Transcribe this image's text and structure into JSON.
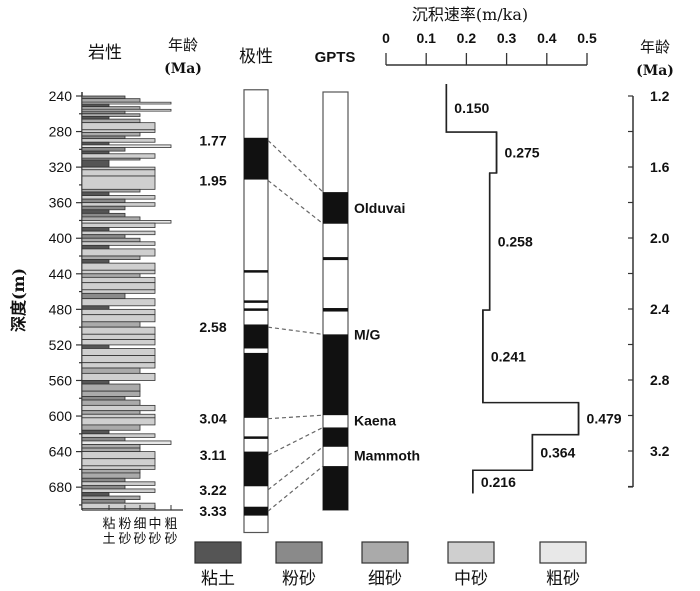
{
  "headers": {
    "lithology": "岩性",
    "age_left": "年龄",
    "age_left_unit": "(Ma)",
    "polarity": "极性",
    "gpts": "GPTS",
    "rate_title": "沉积速率(m/ka)",
    "age_right": "年龄",
    "age_right_unit": "(Ma)",
    "depth_label": "深度(m)"
  },
  "depth_axis": {
    "min": 240,
    "max": 704,
    "ticks": [
      240,
      280,
      320,
      360,
      400,
      440,
      480,
      520,
      560,
      600,
      640,
      680
    ],
    "minor_step": 20
  },
  "grain_axis": [
    {
      "top": "粘",
      "bottom": "土"
    },
    {
      "top": "粉",
      "bottom": "砂"
    },
    {
      "top": "细",
      "bottom": "砂"
    },
    {
      "top": "中",
      "bottom": "砂"
    },
    {
      "top": "粗",
      "bottom": "砂"
    }
  ],
  "lithology_types": [
    {
      "name": "粘土",
      "color": "#555555"
    },
    {
      "name": "粉砂",
      "color": "#8a8a8a"
    },
    {
      "name": "细砂",
      "color": "#aaaaaa"
    },
    {
      "name": "中砂",
      "color": "#cfcfcf"
    },
    {
      "name": "粗砂",
      "color": "#e8e8e8"
    }
  ],
  "lithology_beds": [
    [
      240,
      243,
      1
    ],
    [
      243,
      247,
      2
    ],
    [
      247,
      249,
      4
    ],
    [
      249,
      252,
      0
    ],
    [
      252,
      255,
      2
    ],
    [
      255,
      257,
      4
    ],
    [
      257,
      260,
      1
    ],
    [
      260,
      263,
      2
    ],
    [
      263,
      266,
      0
    ],
    [
      266,
      270,
      2
    ],
    [
      270,
      278,
      3
    ],
    [
      278,
      281,
      3
    ],
    [
      281,
      285,
      2
    ],
    [
      285,
      288,
      1
    ],
    [
      288,
      292,
      3
    ],
    [
      292,
      295,
      0
    ],
    [
      295,
      298,
      4
    ],
    [
      298,
      302,
      1
    ],
    [
      302,
      305,
      0
    ],
    [
      305,
      310,
      3
    ],
    [
      310,
      312,
      2
    ],
    [
      312,
      320,
      0
    ],
    [
      320,
      323,
      3
    ],
    [
      323,
      330,
      3
    ],
    [
      330,
      345,
      3
    ],
    [
      345,
      348,
      2
    ],
    [
      348,
      352,
      0
    ],
    [
      352,
      356,
      3
    ],
    [
      356,
      360,
      1
    ],
    [
      360,
      364,
      3
    ],
    [
      364,
      368,
      1
    ],
    [
      368,
      372,
      0
    ],
    [
      372,
      376,
      1
    ],
    [
      376,
      380,
      2
    ],
    [
      380,
      383,
      4
    ],
    [
      383,
      388,
      3
    ],
    [
      388,
      392,
      0
    ],
    [
      392,
      396,
      3
    ],
    [
      396,
      400,
      1
    ],
    [
      400,
      404,
      2
    ],
    [
      404,
      408,
      3
    ],
    [
      408,
      412,
      0
    ],
    [
      412,
      420,
      3
    ],
    [
      420,
      424,
      2
    ],
    [
      424,
      428,
      0
    ],
    [
      428,
      436,
      3
    ],
    [
      436,
      440,
      3
    ],
    [
      440,
      444,
      2
    ],
    [
      444,
      450,
      3
    ],
    [
      450,
      458,
      3
    ],
    [
      458,
      462,
      3
    ],
    [
      462,
      468,
      1
    ],
    [
      468,
      476,
      3
    ],
    [
      476,
      480,
      0
    ],
    [
      480,
      486,
      3
    ],
    [
      486,
      494,
      3
    ],
    [
      494,
      500,
      2
    ],
    [
      500,
      508,
      3
    ],
    [
      508,
      514,
      3
    ],
    [
      514,
      520,
      3
    ],
    [
      520,
      524,
      0
    ],
    [
      524,
      532,
      3
    ],
    [
      532,
      540,
      3
    ],
    [
      540,
      546,
      3
    ],
    [
      546,
      552,
      2
    ],
    [
      552,
      560,
      3
    ],
    [
      560,
      564,
      0
    ],
    [
      564,
      572,
      2
    ],
    [
      572,
      578,
      2
    ],
    [
      578,
      582,
      1
    ],
    [
      582,
      588,
      2
    ],
    [
      588,
      594,
      3
    ],
    [
      594,
      598,
      2
    ],
    [
      598,
      602,
      3
    ],
    [
      602,
      610,
      3
    ],
    [
      610,
      616,
      2
    ],
    [
      616,
      620,
      0
    ],
    [
      620,
      624,
      3
    ],
    [
      624,
      628,
      1
    ],
    [
      628,
      632,
      4
    ],
    [
      632,
      636,
      2
    ],
    [
      636,
      640,
      2
    ],
    [
      640,
      648,
      3
    ],
    [
      648,
      656,
      3
    ],
    [
      656,
      660,
      3
    ],
    [
      660,
      664,
      2
    ],
    [
      664,
      670,
      2
    ],
    [
      670,
      674,
      1
    ],
    [
      674,
      678,
      3
    ],
    [
      678,
      682,
      1
    ],
    [
      682,
      686,
      3
    ],
    [
      686,
      690,
      0
    ],
    [
      690,
      694,
      2
    ],
    [
      694,
      698,
      1
    ],
    [
      698,
      704,
      3
    ]
  ],
  "age_markers": [
    {
      "label": "1.77",
      "depth": 290
    },
    {
      "label": "1.95",
      "depth": 335
    },
    {
      "label": "2.58",
      "depth": 500
    },
    {
      "label": "3.04",
      "depth": 603
    },
    {
      "label": "3.11",
      "depth": 644
    },
    {
      "label": "3.22",
      "depth": 683
    },
    {
      "label": "3.33",
      "depth": 707
    }
  ],
  "polarity_column": {
    "depth_range": [
      233,
      731
    ],
    "normal_intervals": [
      [
        287,
        334
      ],
      [
        497,
        524
      ],
      [
        529,
        602
      ],
      [
        640,
        679
      ],
      [
        702,
        712
      ]
    ],
    "thin_events": [
      437,
      471,
      480,
      624
    ]
  },
  "gpts": {
    "age_range": [
      1.2,
      3.6
    ],
    "normal_chrons": [
      [
        1.77,
        1.95
      ],
      [
        2.14,
        2.15
      ],
      [
        2.43,
        2.45
      ],
      [
        2.58,
        3.04
      ],
      [
        3.11,
        3.22
      ],
      [
        3.33,
        3.58
      ]
    ],
    "chron_labels": [
      {
        "label": "Olduvai",
        "age": 1.86
      },
      {
        "label": "M/G",
        "age": 2.58
      },
      {
        "label": "Kaena",
        "age": 3.07
      },
      {
        "label": "Mammoth",
        "age": 3.27
      }
    ]
  },
  "correlation_lines": [
    {
      "depth": 290,
      "age": 1.77
    },
    {
      "depth": 335,
      "age": 1.95
    },
    {
      "depth": 500,
      "age": 2.58
    },
    {
      "depth": 603,
      "age": 3.04
    },
    {
      "depth": 644,
      "age": 3.11
    },
    {
      "depth": 683,
      "age": 3.22
    },
    {
      "depth": 707,
      "age": 3.33
    }
  ],
  "chart_data": {
    "type": "line",
    "title": "沉积速率(m/ka)",
    "xlabel": "沉积速率(m/ka)",
    "ylabel": "年龄(Ma)",
    "xlim": [
      0,
      0.5
    ],
    "x_ticks": [
      "0",
      "0.1",
      "0.2",
      "0.3",
      "0.4",
      "0.5"
    ],
    "ylim": [
      1.2,
      3.4
    ],
    "y_ticks": [
      "1.2",
      "1.6",
      "2.0",
      "2.4",
      "2.8",
      "3.2"
    ],
    "steps": [
      {
        "rate": 0.15,
        "label": "0.150",
        "age_from": 1.18,
        "age_to": 1.45
      },
      {
        "rate": 0.275,
        "label": "0.275",
        "age_from": 1.45,
        "age_to": 1.68
      },
      {
        "rate": 0.258,
        "label": "0.258",
        "age_from": 1.68,
        "age_to": 2.45
      },
      {
        "rate": 0.241,
        "label": "0.241",
        "age_from": 2.45,
        "age_to": 2.97
      },
      {
        "rate": 0.479,
        "label": "0.479",
        "age_from": 2.97,
        "age_to": 3.15
      },
      {
        "rate": 0.364,
        "label": "0.364",
        "age_from": 3.15,
        "age_to": 3.35
      },
      {
        "rate": 0.216,
        "label": "0.216",
        "age_from": 3.35,
        "age_to": 3.48
      }
    ]
  },
  "legend": [
    {
      "label": "粘土",
      "color": "#555555"
    },
    {
      "label": "粉砂",
      "color": "#8a8a8a"
    },
    {
      "label": "细砂",
      "color": "#aaaaaa"
    },
    {
      "label": "中砂",
      "color": "#cfcfcf"
    },
    {
      "label": "粗砂",
      "color": "#e8e8e8"
    }
  ]
}
